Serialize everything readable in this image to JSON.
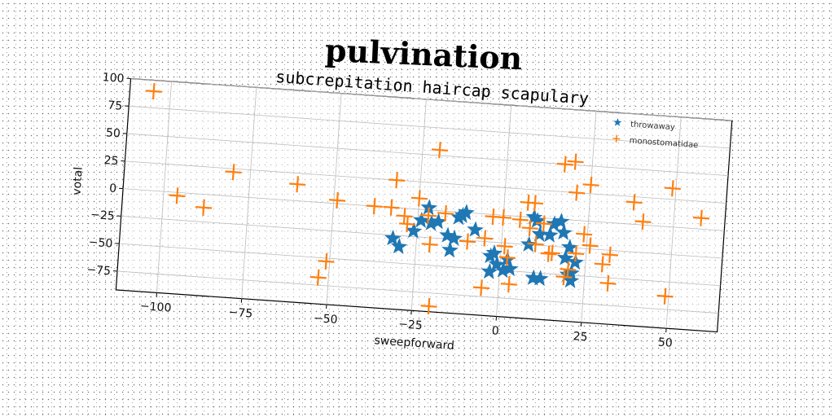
{
  "chart_data": {
    "type": "scatter",
    "title": "pulvination",
    "subtitle": "subcrepitation haircap scapulary",
    "xlabel": "sweepforward",
    "ylabel": "votal",
    "xlim": [
      -112,
      65
    ],
    "ylim": [
      -92,
      100
    ],
    "xticks": [
      -100,
      -75,
      -50,
      -25,
      0,
      25,
      50
    ],
    "yticks": [
      100,
      75,
      50,
      25,
      0,
      -25,
      -50,
      -75
    ],
    "grid": true,
    "legend_position": "top-right",
    "series": [
      {
        "name": "throwaway",
        "marker": "star",
        "color": "#1f77b4",
        "points": [
          [
            -32,
            -28
          ],
          [
            -30,
            -35
          ],
          [
            -26,
            -20
          ],
          [
            -24,
            -10
          ],
          [
            -22,
            2
          ],
          [
            -21,
            -12
          ],
          [
            -19,
            -10
          ],
          [
            -16,
            -22
          ],
          [
            -15,
            -35
          ],
          [
            -14,
            -24
          ],
          [
            -13,
            -5
          ],
          [
            -12,
            -3
          ],
          [
            -11,
            0
          ],
          [
            -8,
            -15
          ],
          [
            -3,
            -38
          ],
          [
            -3,
            -52
          ],
          [
            -2,
            -35
          ],
          [
            -1,
            -45
          ],
          [
            1,
            -50
          ],
          [
            2,
            -40
          ],
          [
            3,
            -48
          ],
          [
            8,
            -25
          ],
          [
            9,
            0
          ],
          [
            10,
            -3
          ],
          [
            10,
            -55
          ],
          [
            11,
            -15
          ],
          [
            12,
            -55
          ],
          [
            14,
            -15
          ],
          [
            15,
            -5
          ],
          [
            17,
            -2
          ],
          [
            18,
            -12
          ],
          [
            19,
            -35
          ],
          [
            20,
            -25
          ],
          [
            20,
            -50
          ],
          [
            21,
            -48
          ],
          [
            21,
            -55
          ],
          [
            22,
            -38
          ]
        ]
      },
      {
        "name": "monostomatidae",
        "marker": "plus",
        "color": "#ff7f0e",
        "points": [
          [
            -105,
            90
          ],
          [
            -96,
            -3
          ],
          [
            -88,
            -12
          ],
          [
            -80,
            22
          ],
          [
            -61,
            15
          ],
          [
            -53,
            -68
          ],
          [
            -51,
            -53
          ],
          [
            -49,
            3
          ],
          [
            -38,
            0
          ],
          [
            -33,
            0
          ],
          [
            -32,
            25
          ],
          [
            -29,
            -7
          ],
          [
            -28,
            -14
          ],
          [
            -25,
            10
          ],
          [
            -22,
            -5
          ],
          [
            -21,
            -31
          ],
          [
            -20,
            55
          ],
          [
            -20,
            -87
          ],
          [
            -17,
            -2
          ],
          [
            -10,
            -26
          ],
          [
            -5,
            -67
          ],
          [
            -5,
            -22
          ],
          [
            -3,
            -2
          ],
          [
            0,
            -2
          ],
          [
            1,
            -28
          ],
          [
            2,
            -38
          ],
          [
            3,
            -62
          ],
          [
            5,
            -3
          ],
          [
            7,
            13
          ],
          [
            8,
            -10
          ],
          [
            9,
            13
          ],
          [
            10,
            -24
          ],
          [
            12,
            -5
          ],
          [
            14,
            -32
          ],
          [
            15,
            -31
          ],
          [
            17,
            50
          ],
          [
            19,
            -52
          ],
          [
            20,
            53
          ],
          [
            20,
            -45
          ],
          [
            21,
            25
          ],
          [
            22,
            -30
          ],
          [
            24,
            -12
          ],
          [
            25,
            33
          ],
          [
            26,
            -22
          ],
          [
            30,
            -38
          ],
          [
            32,
            -29
          ],
          [
            32,
            -55
          ],
          [
            38,
            20
          ],
          [
            41,
            3
          ],
          [
            49,
            35
          ],
          [
            49,
            -63
          ],
          [
            58,
            10
          ]
        ]
      }
    ]
  }
}
